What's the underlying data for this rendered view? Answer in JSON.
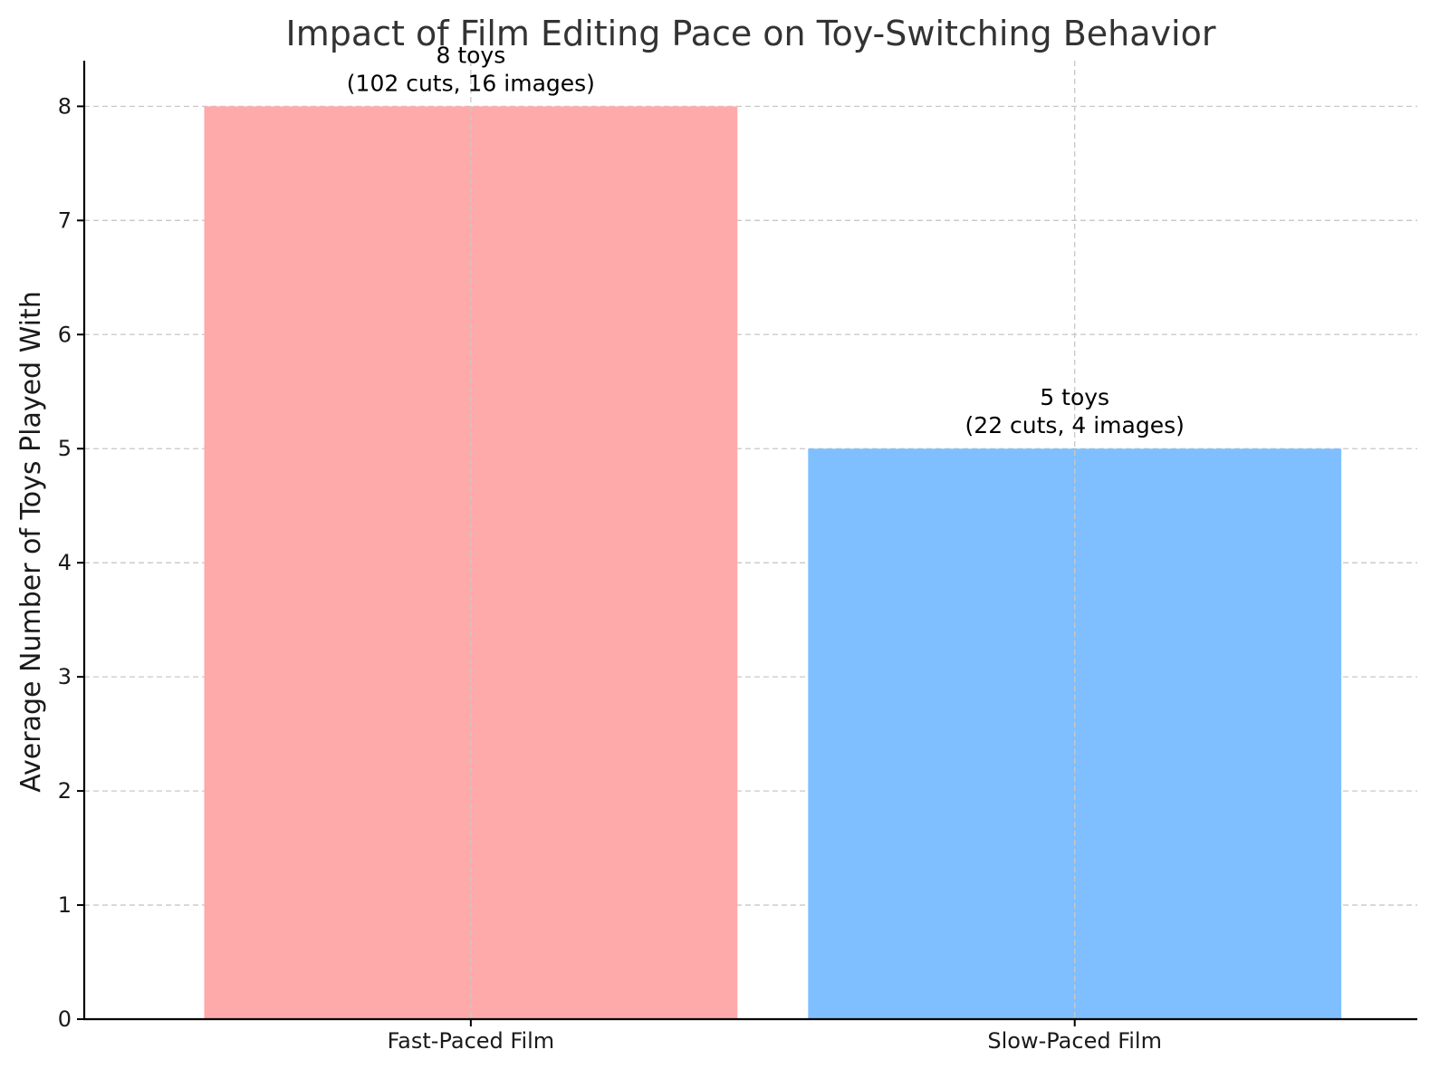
{
  "chart_data": {
    "type": "bar",
    "title": "Impact of Film Editing Pace on Toy-Switching Behavior",
    "xlabel": "",
    "ylabel": "Average Number of Toys Played With",
    "categories": [
      "Fast-Paced Film",
      "Slow-Paced Film"
    ],
    "values": [
      8,
      5
    ],
    "colors": [
      "#ffaaaa",
      "#80bfff"
    ],
    "data_labels": [
      [
        "8 toys",
        "(102 cuts, 16 images)"
      ],
      [
        "5 toys",
        "(22 cuts, 4 images)"
      ]
    ],
    "ylim": [
      0,
      8.4
    ],
    "yticks": [
      0,
      1,
      2,
      3,
      4,
      5,
      6,
      7,
      8
    ],
    "grid": true
  }
}
